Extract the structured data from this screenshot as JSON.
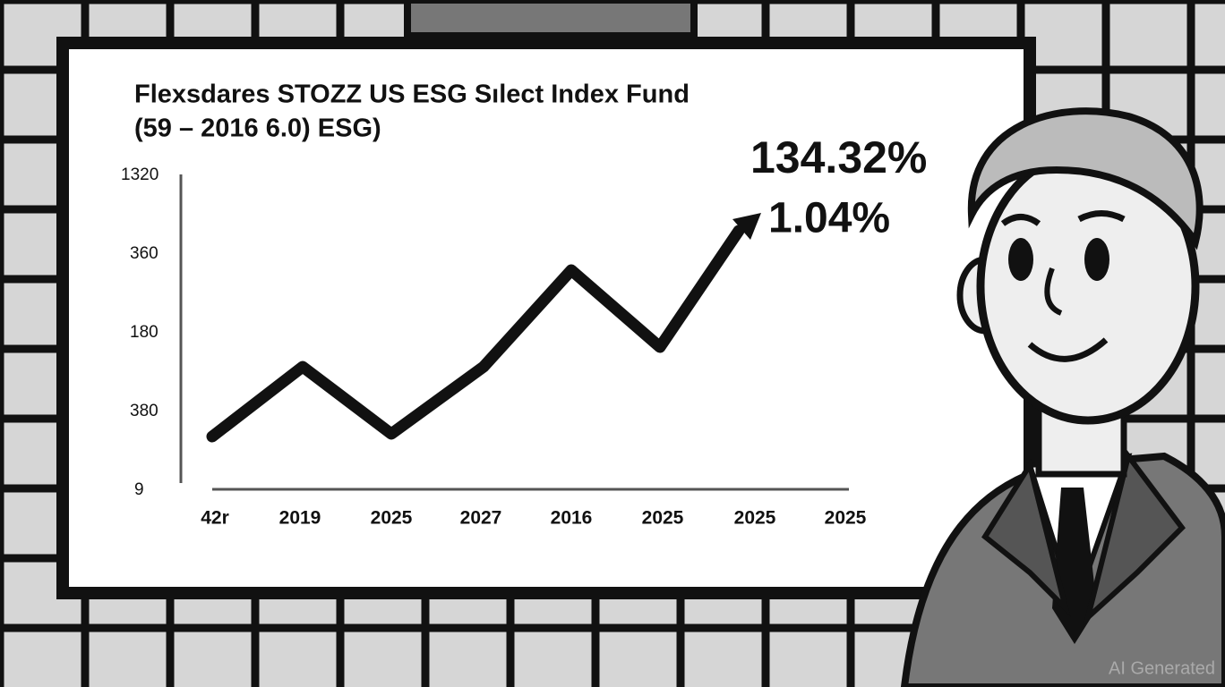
{
  "board": {
    "title": "Flexsdares STOZZ US ESG Sılect Index Fund",
    "subtitle": "(59 – 2016 6.0) ESG)",
    "annotations": [
      "134.32%",
      "1.04%"
    ],
    "y_axis_labels": [
      "1320",
      "360",
      "180",
      "380",
      "9"
    ],
    "x_axis_labels": [
      "42r",
      "2019",
      "2025",
      "2027",
      "2016",
      "2025",
      "2025",
      "2025"
    ]
  },
  "watermark": "AI Generated"
}
